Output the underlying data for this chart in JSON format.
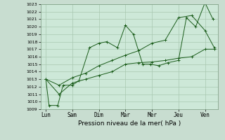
{
  "background_color": "#c8ddd0",
  "plot_bg_color": "#cde8d8",
  "grid_color": "#a8c8b0",
  "line_color": "#1a5c1a",
  "xlabel": "Pression niveau de la mer( hPa )",
  "ylim": [
    1009,
    1023
  ],
  "yticks": [
    1009,
    1010,
    1011,
    1012,
    1013,
    1014,
    1015,
    1016,
    1017,
    1018,
    1019,
    1020,
    1021,
    1022,
    1023
  ],
  "x_labels": [
    "Lun",
    "Sam",
    "Dim",
    "Mar",
    "Mer",
    "Jeu",
    "Ven"
  ],
  "x_positions": [
    0,
    1,
    2,
    3,
    4,
    5,
    6
  ],
  "xlim": [
    -0.2,
    6.5
  ],
  "line1_x": [
    0,
    0.12,
    0.45,
    0.65,
    1.0,
    1.25,
    1.65,
    2.0,
    2.3,
    2.7,
    3.0,
    3.3,
    3.65,
    3.95,
    4.25,
    4.6,
    5.0,
    5.3,
    5.65,
    6.0,
    6.3
  ],
  "line1_y": [
    1013,
    1009.5,
    1009.5,
    1012.2,
    1012.2,
    1012.8,
    1017.2,
    1017.8,
    1018.0,
    1017.2,
    1020.2,
    1019.0,
    1015.0,
    1015.0,
    1014.8,
    1015.2,
    1015.5,
    1021.2,
    1020.0,
    1023.2,
    1021.0
  ],
  "line2_x": [
    0,
    0.5,
    1.0,
    1.5,
    2.0,
    2.5,
    3.0,
    3.5,
    4.0,
    4.5,
    5.0,
    5.5,
    6.0,
    6.35
  ],
  "line2_y": [
    1013,
    1011,
    1012.5,
    1013.0,
    1013.5,
    1014.0,
    1015.0,
    1015.2,
    1015.3,
    1015.5,
    1015.8,
    1016.0,
    1017.0,
    1017.0
  ],
  "line3_x": [
    0,
    0.5,
    1.0,
    1.5,
    2.0,
    2.5,
    3.0,
    3.5,
    4.0,
    4.5,
    5.0,
    5.5,
    6.0,
    6.35
  ],
  "line3_y": [
    1013,
    1012.2,
    1013.2,
    1013.8,
    1014.8,
    1015.5,
    1016.2,
    1016.8,
    1017.8,
    1018.2,
    1021.2,
    1021.5,
    1019.5,
    1017.2
  ]
}
